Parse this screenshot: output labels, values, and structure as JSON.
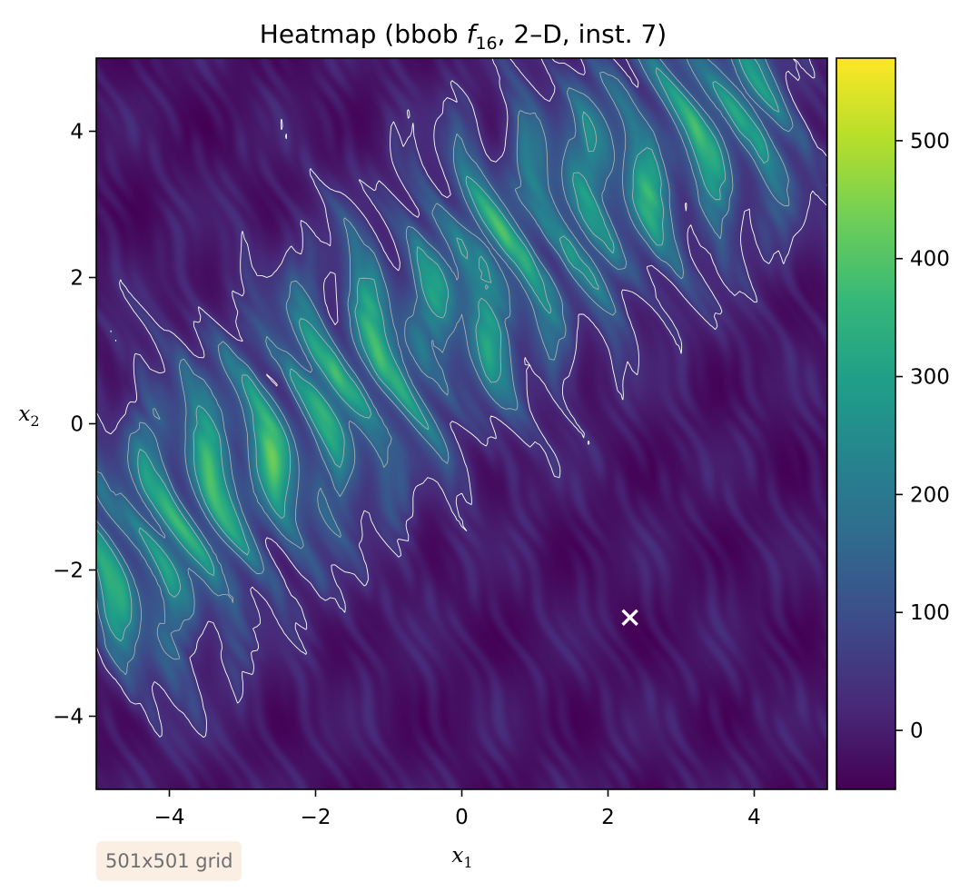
{
  "chart_data": {
    "type": "heatmap",
    "title": {
      "prefix": "Heatmap (bbob ",
      "func_letter": "f",
      "func_sub": "16",
      "suffix": ", 2–D, inst. 7)"
    },
    "xlabel": {
      "letter": "x",
      "sub": "1"
    },
    "ylabel": {
      "letter": "x",
      "sub": "2"
    },
    "xlim": [
      -5,
      5
    ],
    "ylim": [
      -5,
      5
    ],
    "x_ticks": [
      {
        "value": -4,
        "label": "−4"
      },
      {
        "value": -2,
        "label": "−2"
      },
      {
        "value": 0,
        "label": "0"
      },
      {
        "value": 2,
        "label": "2"
      },
      {
        "value": 4,
        "label": "4"
      }
    ],
    "y_ticks": [
      {
        "value": 4,
        "label": "4"
      },
      {
        "value": 2,
        "label": "2"
      },
      {
        "value": 0,
        "label": "0"
      },
      {
        "value": -2,
        "label": "−2"
      },
      {
        "value": -4,
        "label": "−4"
      }
    ],
    "colorbar": {
      "colormap": "viridis",
      "range": [
        -50,
        570
      ],
      "ticks": [
        {
          "value": 0,
          "label": "0"
        },
        {
          "value": 100,
          "label": "100"
        },
        {
          "value": 200,
          "label": "200"
        },
        {
          "value": 300,
          "label": "300"
        },
        {
          "value": 400,
          "label": "400"
        },
        {
          "value": 500,
          "label": "500"
        }
      ]
    },
    "band_direction": [
      -0.42,
      1
    ],
    "ridge_peaks": [
      {
        "x": -4.7,
        "y": -2.1,
        "value": 380
      },
      {
        "x": -4.0,
        "y": -1.5,
        "value": 390
      },
      {
        "x": -3.4,
        "y": -0.75,
        "value": 410
      },
      {
        "x": -2.6,
        "y": -0.35,
        "value": 400
      },
      {
        "x": -1.8,
        "y": 0.35,
        "value": 420
      },
      {
        "x": -1.0,
        "y": 1.05,
        "value": 410
      },
      {
        "x": 0.0,
        "y": 1.65,
        "value": 400
      },
      {
        "x": 0.6,
        "y": 2.35,
        "value": 390
      },
      {
        "x": 1.5,
        "y": 2.95,
        "value": 380
      },
      {
        "x": 2.3,
        "y": 3.45,
        "value": 380
      },
      {
        "x": 3.2,
        "y": 3.95,
        "value": 370
      },
      {
        "x": 3.9,
        "y": 4.5,
        "value": 360
      }
    ],
    "optimum_marker": {
      "x": 2.3,
      "y": -2.65,
      "symbol": "x",
      "color": "#ffffff"
    },
    "colors": {
      "viridis": [
        "#440154",
        "#482878",
        "#3e4989",
        "#31688e",
        "#26828e",
        "#1f9e89",
        "#35b779",
        "#6ece58",
        "#b5de2b",
        "#fde725"
      ],
      "contour_light": "#ffffff",
      "contour_mid": "#b4b4b4"
    }
  },
  "badge": {
    "text": "501x501 grid"
  }
}
